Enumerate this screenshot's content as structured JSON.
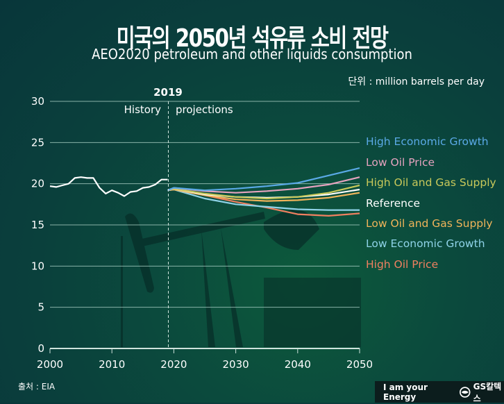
{
  "header": {
    "title": "미국의 2050년 석유류 소비 전망",
    "subtitle": "AEO2020 petroleum and other liquids consumption",
    "unit": "단위 : million barrels per day"
  },
  "footer": {
    "source": "출처 : EIA",
    "brand_slogan": "I am your Energy",
    "brand_name": "GS칼텍스"
  },
  "annotations": {
    "year_marker": "2019",
    "history": "History",
    "projections": "projections"
  },
  "chart_data": {
    "type": "line",
    "title": "미국의 2050년 석유류 소비 전망",
    "subtitle": "AEO2020 petroleum and other liquids consumption",
    "xlabel": "",
    "ylabel": "million barrels per day",
    "xlim": [
      2000,
      2050
    ],
    "ylim": [
      0,
      30
    ],
    "x_ticks": [
      2000,
      2010,
      2020,
      2030,
      2040,
      2050
    ],
    "y_ticks": [
      0,
      5,
      10,
      15,
      20,
      25,
      30
    ],
    "grid": "horizontal",
    "legend_position": "right",
    "vertical_marker": {
      "x": 2019,
      "label": "2019",
      "left_text": "History",
      "right_text": "projections"
    },
    "history": {
      "name": "History",
      "color": "#ffffff",
      "x": [
        2000,
        2001,
        2002,
        2003,
        2004,
        2005,
        2006,
        2007,
        2008,
        2009,
        2010,
        2011,
        2012,
        2013,
        2014,
        2015,
        2016,
        2017,
        2018,
        2019
      ],
      "values": [
        19.7,
        19.6,
        19.8,
        20.0,
        20.7,
        20.8,
        20.7,
        20.7,
        19.5,
        18.8,
        19.2,
        18.9,
        18.5,
        19.0,
        19.1,
        19.5,
        19.6,
        19.9,
        20.5,
        20.5
      ]
    },
    "x": [
      2019,
      2020,
      2025,
      2030,
      2035,
      2040,
      2045,
      2050
    ],
    "series": [
      {
        "name": "High Economic Growth",
        "color": "#5aa9e6",
        "values": [
          19.2,
          19.5,
          19.2,
          19.4,
          19.7,
          20.1,
          21.0,
          21.9
        ]
      },
      {
        "name": "Low Oil Price",
        "color": "#e6a3bf",
        "values": [
          19.2,
          19.5,
          19.1,
          18.9,
          19.1,
          19.4,
          19.9,
          20.8
        ]
      },
      {
        "name": "High Oil and Gas Supply",
        "color": "#c8c85a",
        "values": [
          19.2,
          19.4,
          18.8,
          18.4,
          18.2,
          18.4,
          18.9,
          19.8
        ]
      },
      {
        "name": "Reference",
        "color": "#ffffff",
        "values": [
          19.2,
          19.4,
          18.7,
          18.4,
          18.3,
          18.4,
          18.7,
          19.3
        ]
      },
      {
        "name": "Low Oil and Gas Supply",
        "color": "#f0b45a",
        "values": [
          19.2,
          19.3,
          18.6,
          18.1,
          17.9,
          18.0,
          18.3,
          18.9
        ]
      },
      {
        "name": "Low Economic Growth",
        "color": "#8fd3e8",
        "values": [
          19.2,
          19.3,
          18.2,
          17.5,
          17.2,
          16.9,
          16.8,
          16.8
        ]
      },
      {
        "name": "High Oil Price",
        "color": "#f08060",
        "values": [
          19.2,
          19.3,
          18.6,
          17.8,
          17.1,
          16.3,
          16.1,
          16.4
        ]
      }
    ]
  },
  "legend": [
    {
      "label": "High Economic Growth",
      "color": "#5aa9e6"
    },
    {
      "label": "Low Oil Price",
      "color": "#e6a3bf"
    },
    {
      "label": "High Oil and Gas Supply",
      "color": "#c8c85a"
    },
    {
      "label": "Reference",
      "color": "#ffffff"
    },
    {
      "label": "Low Oil and Gas Supply",
      "color": "#f0b45a"
    },
    {
      "label": "Low Economic Growth",
      "color": "#8fd3e8"
    },
    {
      "label": "High Oil Price",
      "color": "#f08060"
    }
  ]
}
